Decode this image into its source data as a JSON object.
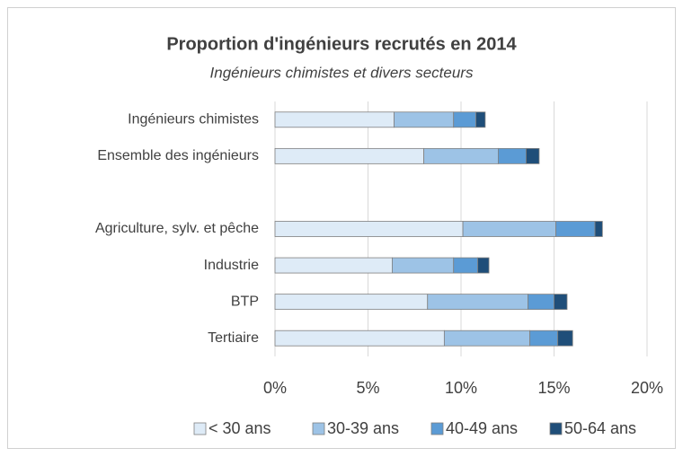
{
  "chart_data": {
    "type": "stacked-barh",
    "title": "Proportion d'ingénieurs recrutés en 2014",
    "subtitle": "Ingénieurs chimistes et divers secteurs",
    "categories": [
      "Ingénieurs chimistes",
      "Ensemble des ingénieurs",
      null,
      "Agriculture, sylv. et pêche",
      "Industrie",
      "BTP",
      "Tertiaire"
    ],
    "series": [
      {
        "name": "< 30 ans",
        "color": "#deebf7",
        "values": [
          6.4,
          8.0,
          null,
          10.1,
          6.3,
          8.2,
          9.1
        ]
      },
      {
        "name": "30-39 ans",
        "color": "#9dc3e6",
        "values": [
          3.2,
          4.0,
          null,
          5.0,
          3.3,
          5.4,
          4.6
        ]
      },
      {
        "name": "40-49 ans",
        "color": "#5b9bd5",
        "values": [
          1.2,
          1.5,
          null,
          2.1,
          1.3,
          1.4,
          1.5
        ]
      },
      {
        "name": "50-64 ans",
        "color": "#1f4e79",
        "values": [
          0.5,
          0.7,
          null,
          0.4,
          0.6,
          0.7,
          0.8
        ]
      }
    ],
    "xlim": [
      0,
      20
    ],
    "xticks": [
      {
        "value": 0,
        "label": "0%"
      },
      {
        "value": 5,
        "label": "5%"
      },
      {
        "value": 10,
        "label": "10%"
      },
      {
        "value": 15,
        "label": "15%"
      },
      {
        "value": 20,
        "label": "20%"
      }
    ],
    "grid": true,
    "legend": "bottom"
  }
}
